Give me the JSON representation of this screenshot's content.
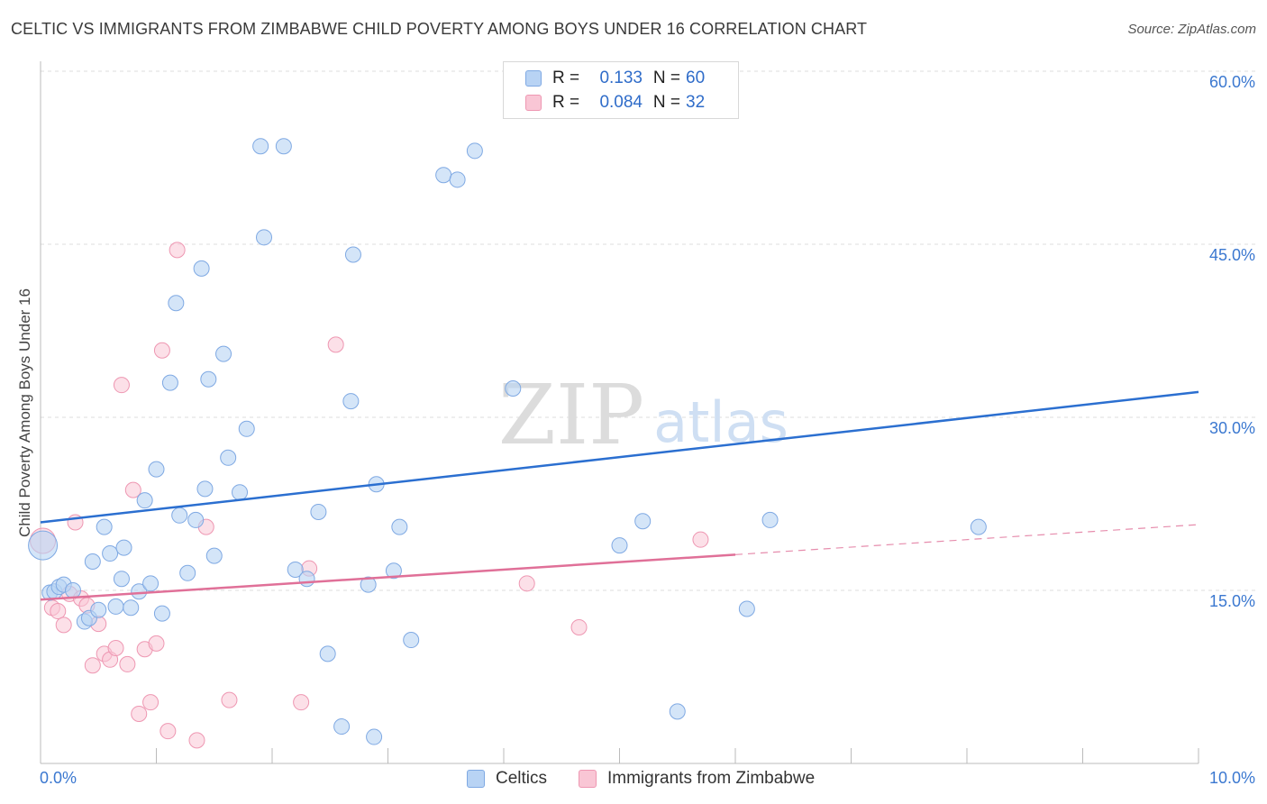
{
  "title": "CELTIC VS IMMIGRANTS FROM ZIMBABWE CHILD POVERTY AMONG BOYS UNDER 16 CORRELATION CHART",
  "source": "Source: ZipAtlas.com",
  "watermark": {
    "zip": "ZIP",
    "atlas": "atlas"
  },
  "stats": [
    {
      "r_label": "R =",
      "r_value": "0.133",
      "n_label": "N =",
      "n_value": "60"
    },
    {
      "r_label": "R =",
      "r_value": "0.084",
      "n_label": "N =",
      "n_value": "32"
    }
  ],
  "legend": {
    "celtics": "Celtics",
    "zimbabwe": "Immigrants from Zimbabwe"
  },
  "colors": {
    "celtics_fill": "#b8d3f4",
    "celtics_stroke": "#7fa9e3",
    "celtics_line": "#2b6fd0",
    "zimbabwe_fill": "#f9c6d5",
    "zimbabwe_stroke": "#ee97b2",
    "zimbabwe_line": "#e07098",
    "axis_text": "#3b78d0",
    "grid": "#dddddd"
  },
  "chart_data": {
    "type": "scatter",
    "title": "CELTIC VS IMMIGRANTS FROM ZIMBABWE CHILD POVERTY AMONG BOYS UNDER 16 CORRELATION CHART",
    "xlabel": "",
    "ylabel": "Child Poverty Among Boys Under 16",
    "xlim": [
      0,
      10
    ],
    "ylim": [
      0,
      60
    ],
    "x_tick_labels": [
      "0.0%",
      "10.0%"
    ],
    "y_ticks": [
      15,
      30,
      45,
      60
    ],
    "y_tick_labels": [
      "15.0%",
      "30.0%",
      "45.0%",
      "60.0%"
    ],
    "series": [
      {
        "name": "Celtics",
        "points": [
          [
            0.02,
            18.9
          ],
          [
            0.08,
            14.8
          ],
          [
            0.12,
            14.9
          ],
          [
            0.16,
            15.3
          ],
          [
            0.2,
            15.5
          ],
          [
            0.28,
            15.0
          ],
          [
            0.38,
            12.3
          ],
          [
            0.42,
            12.6
          ],
          [
            0.45,
            17.5
          ],
          [
            0.5,
            13.3
          ],
          [
            0.55,
            20.5
          ],
          [
            0.6,
            18.2
          ],
          [
            0.65,
            13.6
          ],
          [
            0.7,
            16.0
          ],
          [
            0.72,
            18.7
          ],
          [
            0.78,
            13.5
          ],
          [
            0.85,
            14.9
          ],
          [
            0.9,
            22.8
          ],
          [
            0.95,
            15.6
          ],
          [
            1.0,
            25.5
          ],
          [
            1.05,
            13.0
          ],
          [
            1.12,
            33.0
          ],
          [
            1.17,
            39.9
          ],
          [
            1.2,
            21.5
          ],
          [
            1.27,
            16.5
          ],
          [
            1.34,
            21.1
          ],
          [
            1.39,
            42.9
          ],
          [
            1.42,
            23.8
          ],
          [
            1.45,
            33.3
          ],
          [
            1.5,
            18.0
          ],
          [
            1.58,
            35.5
          ],
          [
            1.62,
            26.5
          ],
          [
            1.72,
            23.5
          ],
          [
            1.78,
            29.0
          ],
          [
            1.9,
            53.5
          ],
          [
            1.93,
            45.6
          ],
          [
            2.1,
            53.5
          ],
          [
            2.2,
            16.8
          ],
          [
            2.3,
            16.0
          ],
          [
            2.4,
            21.8
          ],
          [
            2.48,
            9.5
          ],
          [
            2.6,
            3.2
          ],
          [
            2.68,
            31.4
          ],
          [
            2.7,
            44.1
          ],
          [
            2.83,
            15.5
          ],
          [
            2.88,
            2.3
          ],
          [
            2.9,
            24.2
          ],
          [
            3.05,
            16.7
          ],
          [
            3.1,
            20.5
          ],
          [
            3.2,
            10.7
          ],
          [
            3.48,
            51.0
          ],
          [
            3.6,
            50.6
          ],
          [
            3.75,
            53.1
          ],
          [
            4.08,
            32.5
          ],
          [
            5.0,
            18.9
          ],
          [
            5.2,
            21.0
          ],
          [
            5.5,
            4.5
          ],
          [
            6.1,
            13.4
          ],
          [
            6.3,
            21.1
          ],
          [
            8.1,
            20.5
          ]
        ],
        "trend": {
          "x": [
            0,
            10
          ],
          "y": [
            20.9,
            32.2
          ]
        }
      },
      {
        "name": "Immigrants from Zimbabwe",
        "points": [
          [
            0.02,
            19.3
          ],
          [
            0.1,
            13.5
          ],
          [
            0.15,
            13.2
          ],
          [
            0.2,
            12.0
          ],
          [
            0.25,
            14.7
          ],
          [
            0.3,
            20.9
          ],
          [
            0.35,
            14.3
          ],
          [
            0.4,
            13.7
          ],
          [
            0.45,
            8.5
          ],
          [
            0.5,
            12.1
          ],
          [
            0.55,
            9.5
          ],
          [
            0.6,
            9.0
          ],
          [
            0.65,
            10.0
          ],
          [
            0.7,
            32.8
          ],
          [
            0.75,
            8.6
          ],
          [
            0.8,
            23.7
          ],
          [
            0.85,
            4.3
          ],
          [
            0.9,
            9.9
          ],
          [
            0.95,
            5.3
          ],
          [
            1.0,
            10.4
          ],
          [
            1.05,
            35.8
          ],
          [
            1.1,
            2.8
          ],
          [
            1.18,
            44.5
          ],
          [
            1.35,
            2.0
          ],
          [
            1.43,
            20.5
          ],
          [
            1.63,
            5.5
          ],
          [
            2.25,
            5.3
          ],
          [
            2.32,
            16.9
          ],
          [
            2.55,
            36.3
          ],
          [
            4.2,
            15.6
          ],
          [
            4.65,
            11.8
          ],
          [
            5.7,
            19.4
          ]
        ],
        "trend": {
          "x": [
            0,
            6.0
          ],
          "y": [
            14.2,
            18.1
          ]
        },
        "trend_dashed": {
          "x": [
            6.0,
            10
          ],
          "y": [
            18.1,
            20.7
          ]
        }
      }
    ]
  }
}
